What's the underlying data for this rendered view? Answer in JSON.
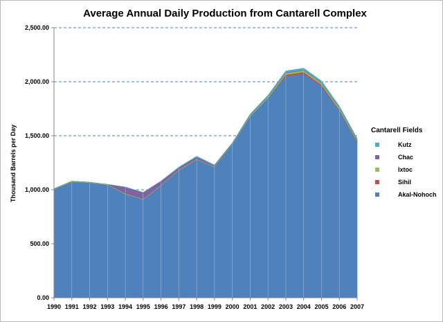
{
  "chart_data": {
    "type": "area",
    "stacked": true,
    "title": "Average Annual Daily Production from Cantarell Complex",
    "xlabel": "",
    "ylabel": "Thousand Barrels per Day",
    "ylim": [
      0,
      2500
    ],
    "yticks": [
      0,
      500,
      1000,
      1500,
      2000,
      2500
    ],
    "ytick_labels": [
      "0.00",
      "500.00",
      "1,000.00",
      "1,500.00",
      "2,000.00",
      "2,500.00"
    ],
    "grid": "horizontal dashed",
    "x": [
      "1990",
      "1991",
      "1992",
      "1993",
      "1994",
      "1995",
      "1996",
      "1997",
      "1998",
      "1999",
      "2000",
      "2001",
      "2002",
      "2003",
      "2004",
      "2005",
      "2006",
      "2007"
    ],
    "legend_title": "Cantarell Fields",
    "legend_position": "right",
    "series": [
      {
        "name": "Akal-Nohoch",
        "color": "#4f81bd",
        "values": [
          1005,
          1075,
          1065,
          1045,
          960,
          910,
          1040,
          1180,
          1280,
          1210,
          1420,
          1680,
          1850,
          2050,
          2075,
          1960,
          1730,
          1440
        ]
      },
      {
        "name": "Sihil",
        "color": "#c0504d",
        "values": [
          0,
          0,
          0,
          0,
          0,
          0,
          0,
          0,
          0,
          0,
          0,
          0,
          0,
          15,
          15,
          12,
          10,
          8
        ]
      },
      {
        "name": "Ixtoc",
        "color": "#9bbb59",
        "values": [
          5,
          5,
          5,
          5,
          5,
          5,
          5,
          5,
          5,
          5,
          5,
          10,
          10,
          15,
          15,
          15,
          15,
          10
        ]
      },
      {
        "name": "Chac",
        "color": "#8064a2",
        "values": [
          0,
          0,
          0,
          0,
          60,
          60,
          35,
          20,
          20,
          10,
          5,
          5,
          5,
          5,
          5,
          5,
          5,
          5
        ]
      },
      {
        "name": "Kutz",
        "color": "#4bacc6",
        "values": [
          0,
          0,
          0,
          0,
          0,
          0,
          0,
          5,
          5,
          5,
          5,
          5,
          10,
          15,
          15,
          15,
          15,
          12
        ]
      }
    ]
  }
}
